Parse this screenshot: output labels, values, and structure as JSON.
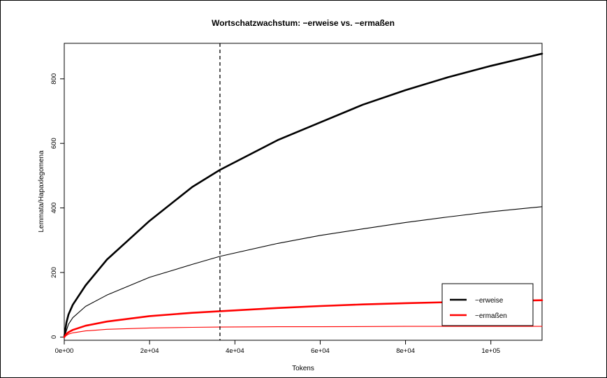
{
  "chart_data": {
    "type": "line",
    "title": "Wortschatzwachstum: −erweise vs. −ermaßen",
    "xlabel": "Tokens",
    "ylabel": "Lemmata/Hapaxlegomena",
    "xlim": [
      0,
      112000
    ],
    "ylim": [
      -10,
      910
    ],
    "x_ticks": [
      0,
      20000,
      40000,
      60000,
      80000,
      100000
    ],
    "x_tick_labels": [
      "0e+00",
      "2e+04",
      "4e+04",
      "6e+04",
      "8e+04",
      "1e+05"
    ],
    "y_ticks": [
      0,
      200,
      400,
      600,
      800
    ],
    "y_tick_labels": [
      "0",
      "200",
      "400",
      "600",
      "800"
    ],
    "vline_x": 36500,
    "colors": {
      "erweise": "#000000",
      "ermassen": "#ff0000"
    },
    "series": [
      {
        "name": "−erweise",
        "kind": "Lemmata",
        "color": "#000000",
        "width": "thick",
        "x": [
          0,
          500,
          1000,
          2000,
          5000,
          10000,
          15000,
          20000,
          30000,
          36500,
          50000,
          60000,
          70000,
          80000,
          90000,
          100000,
          112000
        ],
        "y": [
          0,
          45,
          70,
          100,
          160,
          240,
          300,
          360,
          465,
          518,
          610,
          665,
          720,
          765,
          805,
          840,
          878
        ]
      },
      {
        "name": "−erweise",
        "kind": "Hapaxlegomena",
        "color": "#000000",
        "width": "thin",
        "x": [
          0,
          500,
          1000,
          2000,
          5000,
          10000,
          20000,
          30000,
          36500,
          50000,
          60000,
          70000,
          80000,
          90000,
          100000,
          112000
        ],
        "y": [
          0,
          20,
          40,
          60,
          95,
          130,
          185,
          225,
          250,
          290,
          315,
          335,
          355,
          372,
          388,
          404
        ]
      },
      {
        "name": "−ermaßen",
        "kind": "Lemmata",
        "color": "#ff0000",
        "width": "thick",
        "x": [
          0,
          500,
          1000,
          2000,
          5000,
          10000,
          20000,
          30000,
          36500,
          50000,
          60000,
          70000,
          80000,
          90000,
          100000,
          112000
        ],
        "y": [
          0,
          10,
          15,
          22,
          35,
          48,
          65,
          75,
          80,
          90,
          96,
          101,
          105,
          108,
          111,
          114
        ]
      },
      {
        "name": "−ermaßen",
        "kind": "Hapaxlegomena",
        "color": "#ff0000",
        "width": "thin",
        "x": [
          0,
          500,
          1000,
          2000,
          5000,
          10000,
          20000,
          30000,
          36500,
          50000,
          60000,
          80000,
          100000,
          112000
        ],
        "y": [
          0,
          5,
          9,
          13,
          19,
          24,
          28,
          30,
          31,
          32,
          32,
          33,
          33,
          33
        ]
      }
    ],
    "legend": {
      "position": "bottom-right",
      "entries": [
        {
          "label": "−erweise",
          "color": "#000000"
        },
        {
          "label": "−ermaßen",
          "color": "#ff0000"
        }
      ]
    }
  }
}
